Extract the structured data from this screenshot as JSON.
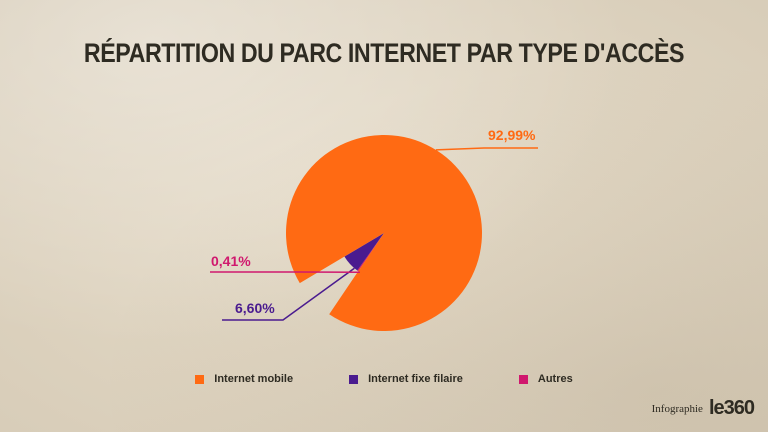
{
  "title": "RÉPARTITION DU PARC INTERNET PAR TYPE D'ACCÈS",
  "chart_data": {
    "type": "pie",
    "categories": [
      "Internet mobile",
      "Internet fixe filaire",
      "Autres"
    ],
    "values": [
      92.99,
      6.6,
      0.41
    ],
    "labels": [
      "92,99%",
      "6,60%",
      "0,41%"
    ],
    "colors": [
      "#ff6a13",
      "#4a1b8f",
      "#d0186e"
    ],
    "legend_position": "bottom"
  },
  "footer": {
    "label": "Infographie",
    "logo": "le360"
  }
}
